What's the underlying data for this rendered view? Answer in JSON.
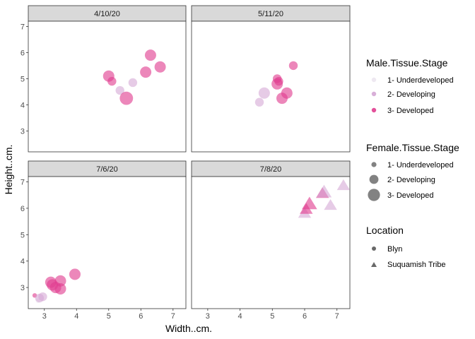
{
  "chart_data": {
    "type": "scatter",
    "xlabel": "Width..cm.",
    "ylabel": "Height..cm.",
    "xlim": [
      2.5,
      7.4
    ],
    "ylim": [
      2.2,
      7.2
    ],
    "x_ticks": [
      3,
      4,
      5,
      6,
      7
    ],
    "y_ticks": [
      3,
      4,
      5,
      6,
      7
    ],
    "grid": false,
    "facets": [
      {
        "label": "4/10/20",
        "points": [
          {
            "x": 5.0,
            "y": 5.1,
            "male": 3,
            "female": 2,
            "location": "Blyn"
          },
          {
            "x": 5.1,
            "y": 4.9,
            "male": 3,
            "female": 1,
            "location": "Blyn"
          },
          {
            "x": 5.35,
            "y": 4.55,
            "male": 2,
            "female": 1,
            "location": "Blyn"
          },
          {
            "x": 5.55,
            "y": 4.25,
            "male": 3,
            "female": 3,
            "location": "Blyn"
          },
          {
            "x": 5.75,
            "y": 4.85,
            "male": 2,
            "female": 1,
            "location": "Blyn"
          },
          {
            "x": 6.15,
            "y": 5.25,
            "male": 3,
            "female": 2,
            "location": "Blyn"
          },
          {
            "x": 6.3,
            "y": 5.9,
            "male": 3,
            "female": 2,
            "location": "Blyn"
          },
          {
            "x": 6.6,
            "y": 5.45,
            "male": 3,
            "female": 2,
            "location": "Blyn"
          }
        ]
      },
      {
        "label": "5/11/20",
        "points": [
          {
            "x": 4.6,
            "y": 4.1,
            "male": 2,
            "female": 1,
            "location": "Blyn"
          },
          {
            "x": 4.75,
            "y": 4.45,
            "male": 2,
            "female": 2,
            "location": "Blyn"
          },
          {
            "x": 5.15,
            "y": 5.0,
            "male": 3,
            "female": 1,
            "location": "Blyn"
          },
          {
            "x": 5.2,
            "y": 4.9,
            "male": 3,
            "female": 1,
            "location": "Blyn"
          },
          {
            "x": 5.15,
            "y": 4.8,
            "male": 3,
            "female": 2,
            "location": "Blyn"
          },
          {
            "x": 5.3,
            "y": 4.25,
            "male": 3,
            "female": 2,
            "location": "Blyn"
          },
          {
            "x": 5.45,
            "y": 4.45,
            "male": 3,
            "female": 2,
            "location": "Blyn"
          },
          {
            "x": 5.65,
            "y": 5.5,
            "male": 3,
            "female": 1,
            "location": "Blyn"
          }
        ]
      },
      {
        "label": "7/6/20",
        "points": [
          {
            "x": 2.7,
            "y": 2.7,
            "male": 3,
            "female": 0,
            "location": "Blyn"
          },
          {
            "x": 2.8,
            "y": 2.5,
            "male": 1,
            "female": 0,
            "location": "Blyn"
          },
          {
            "x": 2.85,
            "y": 2.6,
            "male": 2,
            "female": 1,
            "location": "Blyn"
          },
          {
            "x": 2.95,
            "y": 2.65,
            "male": 2,
            "female": 1,
            "location": "Blyn"
          },
          {
            "x": 3.2,
            "y": 3.2,
            "male": 3,
            "female": 2,
            "location": "Blyn"
          },
          {
            "x": 3.25,
            "y": 3.1,
            "male": 3,
            "female": 2,
            "location": "Blyn"
          },
          {
            "x": 3.35,
            "y": 3.0,
            "male": 3,
            "female": 2,
            "location": "Blyn"
          },
          {
            "x": 3.5,
            "y": 3.25,
            "male": 3,
            "female": 2,
            "location": "Blyn"
          },
          {
            "x": 3.5,
            "y": 2.95,
            "male": 3,
            "female": 2,
            "location": "Blyn"
          },
          {
            "x": 3.95,
            "y": 3.5,
            "male": 3,
            "female": 2,
            "location": "Blyn"
          }
        ]
      },
      {
        "label": "7/8/20",
        "points": [
          {
            "x": 6.0,
            "y": 5.8,
            "male": 2,
            "female": 2,
            "location": "Suquamish Tribe"
          },
          {
            "x": 6.05,
            "y": 5.95,
            "male": 3,
            "female": 2,
            "location": "Suquamish Tribe"
          },
          {
            "x": 6.15,
            "y": 6.15,
            "male": 3,
            "female": 3,
            "location": "Suquamish Tribe"
          },
          {
            "x": 6.55,
            "y": 6.55,
            "male": 3,
            "female": 2,
            "location": "Suquamish Tribe"
          },
          {
            "x": 6.6,
            "y": 6.6,
            "male": 2,
            "female": 3,
            "location": "Suquamish Tribe"
          },
          {
            "x": 6.8,
            "y": 6.1,
            "male": 2,
            "female": 2,
            "location": "Suquamish Tribe"
          },
          {
            "x": 7.2,
            "y": 6.85,
            "male": 2,
            "female": 2,
            "location": "Suquamish Tribe"
          }
        ]
      }
    ],
    "legends": {
      "placement": "right",
      "male": {
        "title": "Male.Tissue.Stage",
        "items": [
          {
            "label": "1- Underdeveloped",
            "color": "#ece6f0"
          },
          {
            "label": "2- Developing",
            "color": "#d4a6d4"
          },
          {
            "label": "3- Developed",
            "color": "#e03d8f"
          }
        ]
      },
      "female": {
        "title": "Female.Tissue.Stage",
        "items": [
          {
            "label": "1- Underdeveloped"
          },
          {
            "label": "2- Developing"
          },
          {
            "label": "3- Developed"
          }
        ]
      },
      "location": {
        "title": "Location",
        "items": [
          {
            "label": "Blyn",
            "shape": "circle"
          },
          {
            "label": "Suquamish Tribe",
            "shape": "triangle"
          }
        ]
      }
    },
    "colors": {
      "strip_bg": "#d9d9d9",
      "legend_key_gray": "#4d4d4d"
    }
  }
}
